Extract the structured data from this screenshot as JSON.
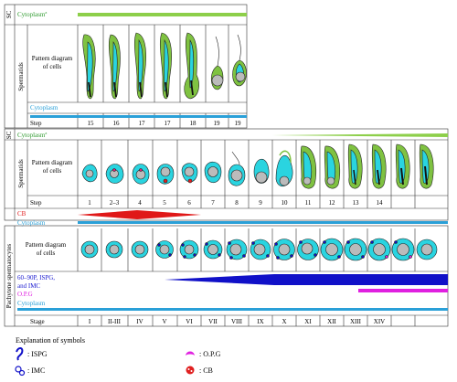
{
  "top_section": {
    "sc_label": "SC",
    "cytoplasm_label": "Cytoplasm",
    "cytoplasm_sup": "a",
    "spermatids_label": "Spermatids",
    "pattern_label_1": "Pattern diagram",
    "pattern_label_2": "of cells",
    "cytoplasm_blue_label": "Cytoplasm",
    "step_label": "Step",
    "steps": [
      "15",
      "16",
      "17",
      "17",
      "18",
      "19",
      "19"
    ]
  },
  "middle_section": {
    "sc_label": "SC",
    "cytoplasm_label": "Cytoplasm",
    "cytoplasm_sup": "a",
    "spermatids_label": "Spermatids",
    "pattern_label_1": "Pattern diagram",
    "pattern_label_2": "of cells",
    "step_label": "Step",
    "steps": [
      "1",
      "2–3",
      "4",
      "5",
      "6",
      "7",
      "8",
      "9",
      "10",
      "11",
      "12",
      "13",
      "14"
    ],
    "cb_label": "CB",
    "cytoplasm_blue_label": "Cytoplasm"
  },
  "bottom_section": {
    "side_label": "Pachytene spermatocytes",
    "pattern_label_1": "Pattern diagram",
    "pattern_label_2": "of cells",
    "marker_label_1": "60–90P, ISPG,",
    "marker_label_2": "and IMC",
    "opg_label": "O.P.G",
    "cytoplasm_label": "Cytoplasm",
    "stage_label": "Stage",
    "stages": [
      "I",
      "II-III",
      "IV",
      "V",
      "VI",
      "VII",
      "VIII",
      "IX",
      "X",
      "XI",
      "XII",
      "XIII",
      "XIV"
    ]
  },
  "legend": {
    "title": "Explanation of symbols",
    "items": [
      {
        "label": ": ISPG",
        "icon": "ispg-icon"
      },
      {
        "label": ": IMC",
        "icon": "imc-icon"
      },
      {
        "label": ": O.P.G",
        "icon": "opg-icon"
      },
      {
        "label": ": CB",
        "icon": "cb-icon"
      }
    ]
  },
  "colors": {
    "green": "#7fc241",
    "dark_green": "#2e8b2e",
    "cyan": "#2ad4e0",
    "blue_bar": "#2aa0d8",
    "red": "#e01818",
    "navy": "#1010c8",
    "magenta": "#e020e0"
  }
}
